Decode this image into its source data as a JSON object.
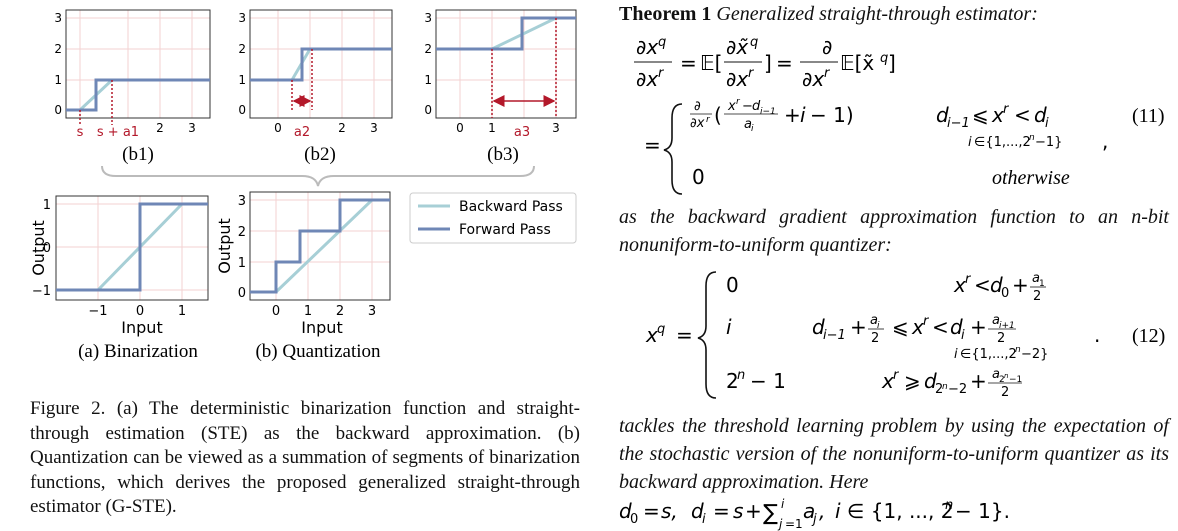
{
  "figure": {
    "b1": {
      "tick_labels_y": [
        "0",
        "1",
        "2",
        "3"
      ],
      "tick_labels_x": [
        "2",
        "3"
      ],
      "annot_s": "s",
      "annot_sa1": "s + a1",
      "sublabel": "(b1)"
    },
    "b2": {
      "tick_labels_y": [
        "0",
        "1",
        "2",
        "3"
      ],
      "tick_labels_x": [
        "0",
        "2",
        "3"
      ],
      "annot_a2": "a2",
      "sublabel": "(b2)"
    },
    "b3": {
      "tick_labels_y": [
        "0",
        "1",
        "2",
        "3"
      ],
      "tick_labels_x": [
        "0",
        "1",
        "3"
      ],
      "annot_a3": "a3",
      "sublabel": "(b3)"
    },
    "bin": {
      "ylabel": "Output",
      "xlabel": "Input",
      "tick_labels_y": [
        "1",
        "0",
        "−1"
      ],
      "tick_labels_x": [
        "−1",
        "0",
        "1"
      ],
      "caption": "(a) Binarization"
    },
    "quant": {
      "ylabel": "Output",
      "xlabel": "Input",
      "tick_labels_y": [
        "3",
        "2",
        "1",
        "0"
      ],
      "tick_labels_x": [
        "0",
        "1",
        "2",
        "3"
      ],
      "caption": "(b) Quantization"
    },
    "legend": {
      "backward": "Backward Pass",
      "forward": "Forward Pass"
    },
    "colors": {
      "backward": "#a7cfd6",
      "forward": "#6f87b6",
      "annot": "#b3182a",
      "grid": "#f3d2d2"
    }
  },
  "caption": {
    "label": "Figure 2.",
    "text": "(a) The deterministic binarization function and straight-through estimation (STE) as the backward approximation. (b) Quantization can be viewed as a summation of segments of binarization functions, which derives the proposed generalized straight-through estimator (G-STE)."
  },
  "theorem": {
    "label": "Theorem 1",
    "title": "Generalized straight-through estimator:",
    "eq11_number": "(11)",
    "eq12_number": "(12)",
    "otherwise": "otherwise",
    "para1": "as the backward gradient approximation function to an n-bit nonuniform-to-uniform quantizer:",
    "para2": "tackles the threshold learning problem by using the expectation of the stochastic version of the nonuniform-to-uniform quantizer as its backward approximation. Here"
  }
}
